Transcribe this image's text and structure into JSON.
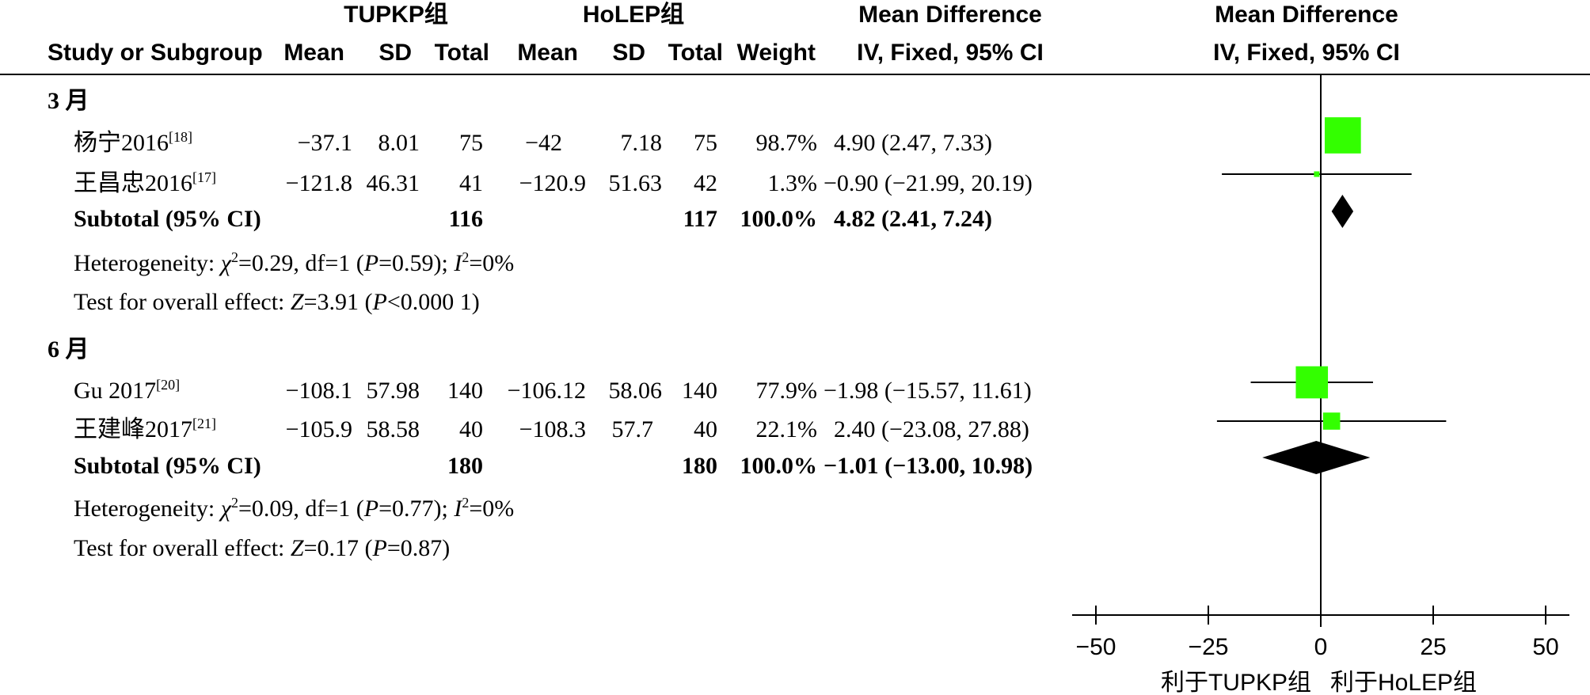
{
  "header": {
    "group1": "TUPKP组",
    "group2": "HoLEP组",
    "md_title": "Mean Difference",
    "md_title_plot": "Mean Difference",
    "cols": {
      "study": "Study or Subgroup",
      "mean1": "Mean",
      "sd1": "SD",
      "total1": "Total",
      "mean2": "Mean",
      "sd2": "SD",
      "total2": "Total",
      "weight": "Weight",
      "ci": "IV, Fixed, 95% CI",
      "ci_plot": "IV, Fixed, 95% CI"
    }
  },
  "subgroups": [
    {
      "label": "3 月",
      "studies": [
        {
          "name": "杨宁2016",
          "ref": "[18]",
          "mean1": "−37.1",
          "sd1": "8.01",
          "total1": "75",
          "mean2": "−42",
          "sd2": "7.18",
          "total2": "75",
          "weight": "98.7%",
          "ci": "4.90 (2.47, 7.33)"
        },
        {
          "name": "王昌忠2016",
          "ref": "[17]",
          "mean1": "−121.8",
          "sd1": "46.31",
          "total1": "41",
          "mean2": "−120.9",
          "sd2": "51.63",
          "total2": "42",
          "weight": "1.3%",
          "ci": "−0.90 (−21.99, 20.19)"
        }
      ],
      "subtotal": {
        "label": "Subtotal (95% CI)",
        "total1": "116",
        "total2": "117",
        "weight": "100.0%",
        "ci": "4.82 (2.41, 7.24)"
      },
      "heterogeneity": {
        "prefix": "Heterogeneity: ",
        "chi": "χ",
        "chi_rest": "=0.29, df=1 (",
        "p": "P",
        "p_rest": "=0.59); ",
        "i": "I",
        "i_rest": "=0%"
      },
      "overall": {
        "prefix": "Test for overall effect: ",
        "z": "Z",
        "z_rest": "=3.91 (",
        "p": "P",
        "p_rest": "<0.000 1)"
      }
    },
    {
      "label": "6 月",
      "studies": [
        {
          "name": "Gu 2017",
          "ref": "[20]",
          "mean1": "−108.1",
          "sd1": "57.98",
          "total1": "140",
          "mean2": "−106.12",
          "sd2": "58.06",
          "total2": "140",
          "weight": "77.9%",
          "ci": "−1.98 (−15.57, 11.61)"
        },
        {
          "name": "王建峰2017",
          "ref": "[21]",
          "mean1": "−105.9",
          "sd1": "58.58",
          "total1": "40",
          "mean2": "−108.3",
          "sd2": "57.7",
          "total2": "40",
          "weight": "22.1%",
          "ci": "2.40 (−23.08, 27.88)"
        }
      ],
      "subtotal": {
        "label": "Subtotal (95% CI)",
        "total1": "180",
        "total2": "180",
        "weight": "100.0%",
        "ci": "−1.01 (−13.00, 10.98)"
      },
      "heterogeneity": {
        "prefix": "Heterogeneity: ",
        "chi": "χ",
        "chi_rest": "=0.09, df=1 (",
        "p": "P",
        "p_rest": "=0.77); ",
        "i": "I",
        "i_rest": "=0%"
      },
      "overall": {
        "prefix": "Test for overall effect: ",
        "z": "Z",
        "z_rest": "=0.17 (",
        "p": "P",
        "p_rest": "=0.87)"
      }
    }
  ],
  "colors": {
    "study_marker": "#33ff00",
    "diamond": "#000000",
    "lines": "#000000"
  },
  "chart_data": {
    "type": "forest",
    "xlim": [
      -50,
      50
    ],
    "xticks": [
      -50,
      -25,
      0,
      25,
      50
    ],
    "xtick_labels": [
      "−50",
      "−25",
      "0",
      "25",
      "50"
    ],
    "favours_left": "利于TUPKP组",
    "favours_right": "利于HoLEP组",
    "studies": [
      {
        "name": "杨宁2016",
        "est": 4.9,
        "lo": 2.47,
        "hi": 7.33,
        "weight": 98.7
      },
      {
        "name": "王昌忠2016",
        "est": -0.9,
        "lo": -21.99,
        "hi": 20.19,
        "weight": 1.3
      },
      {
        "name": "Gu 2017",
        "est": -1.98,
        "lo": -15.57,
        "hi": 11.61,
        "weight": 77.9
      },
      {
        "name": "王建峰2017",
        "est": 2.4,
        "lo": -23.08,
        "hi": 27.88,
        "weight": 22.1
      }
    ],
    "subtotals": [
      {
        "name": "3 月 Subtotal",
        "est": 4.82,
        "lo": 2.41,
        "hi": 7.24
      },
      {
        "name": "6 月 Subtotal",
        "est": -1.01,
        "lo": -13.0,
        "hi": 10.98
      }
    ]
  }
}
